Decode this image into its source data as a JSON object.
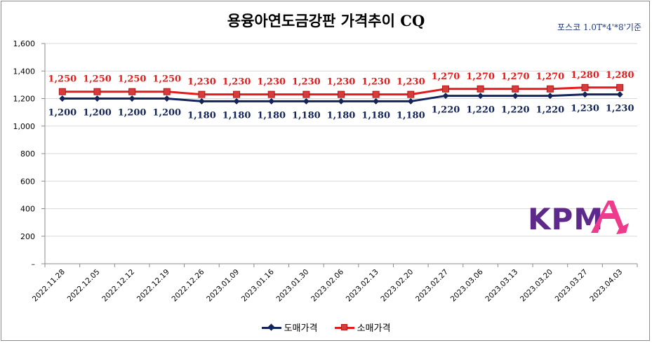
{
  "header": {
    "title": "용융아연도금강판 가격추이 CQ",
    "basis": "포스코 1.0T*4'*8'기준"
  },
  "logo": {
    "text": "KPM",
    "accent_letter": "A"
  },
  "colors": {
    "wholesale": "#12245a",
    "retail": "#e31b1b",
    "logo_purple": "#5d2a8c",
    "logo_pink": "#ef3b8c",
    "grid": "#d9d9d9",
    "axis": "#8c8c8c"
  },
  "chart_data": {
    "type": "line",
    "title": "용융아연도금강판 가격추이 CQ",
    "xlabel": "",
    "ylabel": "",
    "ylim": [
      0,
      1600
    ],
    "yticks": [
      0,
      200,
      400,
      600,
      800,
      1000,
      1200,
      1400,
      1600
    ],
    "ytick_labels": [
      "–",
      "200",
      "400",
      "600",
      "800",
      "1,000",
      "1,200",
      "1,400",
      "1,600"
    ],
    "grid": true,
    "legend_position": "bottom",
    "categories": [
      "2022.11.28",
      "2022.12.05",
      "2022.12.12",
      "2022.12.19",
      "2022.12.26",
      "2023.01.09",
      "2023.01.16",
      "2023.01.30",
      "2023.02.06",
      "2023.02.13",
      "2023.02.20",
      "2023.02.27",
      "2023.03.06",
      "2023.03.13",
      "2023.03.20",
      "2023.03.27",
      "2023.04.03"
    ],
    "series": [
      {
        "name": "도매가격",
        "marker": "diamond",
        "values": [
          1200,
          1200,
          1200,
          1200,
          1180,
          1180,
          1180,
          1180,
          1180,
          1180,
          1180,
          1220,
          1220,
          1220,
          1220,
          1230,
          1230
        ],
        "labels": [
          "1,200",
          "1,200",
          "1,200",
          "1,200",
          "1,180",
          "1,180",
          "1,180",
          "1,180",
          "1,180",
          "1,180",
          "1,180",
          "1,220",
          "1,220",
          "1,220",
          "1,220",
          "1,230",
          "1,230"
        ]
      },
      {
        "name": "소매가격",
        "marker": "square",
        "values": [
          1250,
          1250,
          1250,
          1250,
          1230,
          1230,
          1230,
          1230,
          1230,
          1230,
          1230,
          1270,
          1270,
          1270,
          1270,
          1280,
          1280
        ],
        "labels": [
          "1,250",
          "1,250",
          "1,250",
          "1,250",
          "1,230",
          "1,230",
          "1,230",
          "1,230",
          "1,230",
          "1,230",
          "1,230",
          "1,270",
          "1,270",
          "1,270",
          "1,270",
          "1,280",
          "1,280"
        ]
      }
    ]
  }
}
